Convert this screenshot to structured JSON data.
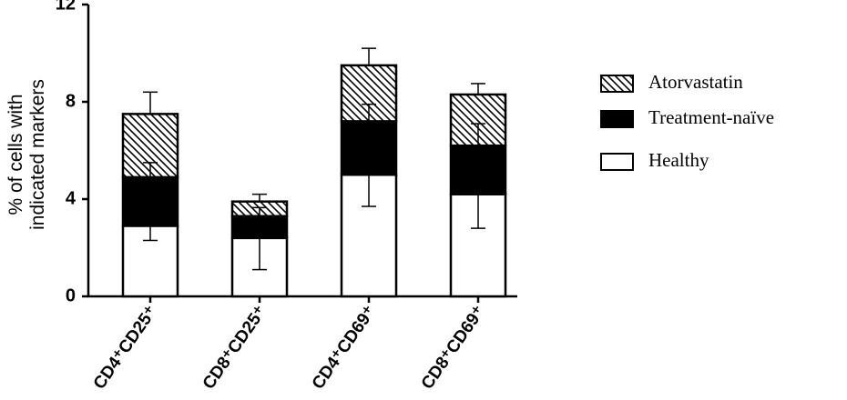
{
  "chart_data": {
    "type": "bar",
    "stacked": true,
    "ylabel": [
      "% of cells with",
      "indicated markers"
    ],
    "categories": [
      "CD4⁺CD25⁺",
      "CD8⁺CD25⁺",
      "CD4⁺CD69⁺",
      "CD8⁺CD69⁺"
    ],
    "series": [
      {
        "name": "Healthy",
        "color": "#ffffff",
        "values": [
          2.9,
          2.4,
          5.0,
          4.2
        ],
        "errors": [
          0.6,
          1.3,
          1.3,
          1.4
        ],
        "error_direction": "down"
      },
      {
        "name": "Treatment-naïve",
        "color": "#000000",
        "values": [
          2.0,
          0.9,
          2.2,
          2.0
        ],
        "errors": [
          0.6,
          0.35,
          0.7,
          0.9
        ],
        "error_direction": "up"
      },
      {
        "name": "Atorvastatin",
        "color": "#ffffff",
        "pattern": "hatch",
        "values": [
          2.6,
          0.6,
          2.3,
          2.1
        ],
        "errors": [
          0.9,
          0.3,
          0.7,
          0.45
        ],
        "error_direction": "up"
      }
    ],
    "ylim": [
      0,
      12
    ],
    "yticks": [
      0,
      4,
      8,
      12
    ],
    "grid": false,
    "legend": "right"
  }
}
